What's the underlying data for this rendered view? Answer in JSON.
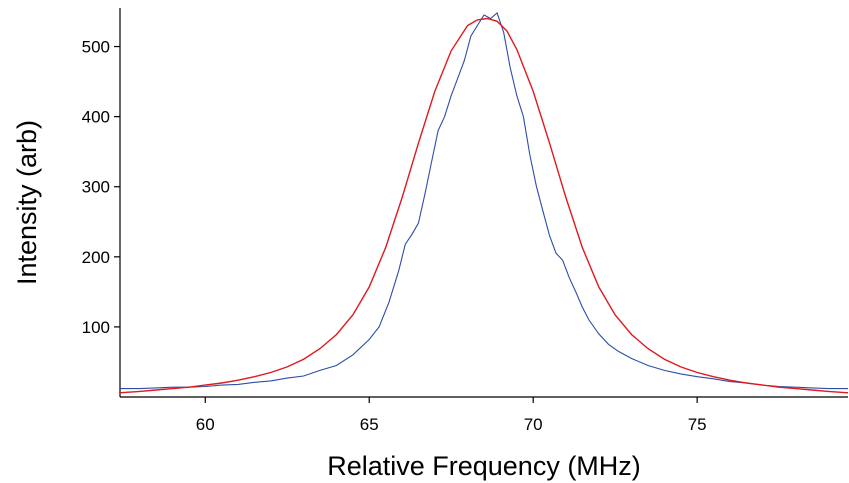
{
  "chart_data": {
    "type": "line",
    "title": "",
    "xlabel": "Relative Frequency (MHz)",
    "ylabel": "Intensity (arb)",
    "xlim": [
      57.4,
      79.6
    ],
    "ylim": [
      0,
      555
    ],
    "xticks": [
      60,
      65,
      70,
      75
    ],
    "yticks": [
      100,
      200,
      300,
      400,
      500
    ],
    "grid": false,
    "legend": "none",
    "colors": {
      "data": "#2b4ea8",
      "fit": "#e0191c"
    },
    "series": [
      {
        "kind": "measured",
        "x": [
          57.4,
          58.0,
          58.5,
          59.0,
          59.5,
          60.0,
          60.5,
          61.0,
          61.5,
          62.0,
          62.5,
          63.0,
          63.5,
          64.0,
          64.5,
          65.0,
          65.3,
          65.6,
          65.9,
          66.1,
          66.3,
          66.5,
          66.7,
          66.9,
          67.1,
          67.3,
          67.5,
          67.7,
          67.9,
          68.1,
          68.3,
          68.5,
          68.7,
          68.9,
          69.1,
          69.3,
          69.5,
          69.7,
          69.9,
          70.1,
          70.3,
          70.5,
          70.7,
          70.9,
          71.1,
          71.3,
          71.5,
          71.7,
          72.0,
          72.3,
          72.6,
          73.0,
          73.5,
          74.0,
          74.5,
          75.0,
          75.5,
          76.0,
          76.5,
          77.0,
          77.5,
          78.0,
          78.5,
          79.0,
          79.6
        ],
        "y": [
          12,
          12,
          13,
          14,
          14,
          15,
          17,
          18,
          21,
          23,
          27,
          30,
          38,
          45,
          60,
          82,
          100,
          135,
          180,
          218,
          232,
          248,
          290,
          335,
          380,
          400,
          430,
          455,
          480,
          515,
          530,
          545,
          540,
          548,
          520,
          470,
          430,
          400,
          345,
          300,
          265,
          230,
          205,
          195,
          170,
          150,
          128,
          110,
          90,
          75,
          65,
          55,
          45,
          38,
          33,
          29,
          26,
          22,
          20,
          17,
          15,
          14,
          13,
          12,
          12
        ]
      },
      {
        "kind": "lorentzian fit",
        "x": [
          57.4,
          58.0,
          58.5,
          59.0,
          59.5,
          60.0,
          60.5,
          61.0,
          61.5,
          62.0,
          62.5,
          63.0,
          63.5,
          64.0,
          64.5,
          65.0,
          65.5,
          66.0,
          66.5,
          67.0,
          67.5,
          68.0,
          68.3,
          68.6,
          68.9,
          69.2,
          69.5,
          70.0,
          70.5,
          71.0,
          71.5,
          72.0,
          72.5,
          73.0,
          73.5,
          74.0,
          74.5,
          75.0,
          75.5,
          76.0,
          76.5,
          77.0,
          77.5,
          78.0,
          78.5,
          79.0,
          79.6
        ],
        "y": [
          6,
          8,
          10,
          12,
          14,
          17,
          20,
          24,
          29,
          35,
          43,
          54,
          69,
          89,
          117,
          157,
          213,
          284,
          362,
          436,
          494,
          530,
          538,
          540,
          536,
          522,
          496,
          436,
          362,
          284,
          213,
          157,
          117,
          89,
          69,
          54,
          43,
          35,
          29,
          24,
          20,
          17,
          14,
          12,
          10,
          8,
          6
        ]
      }
    ]
  }
}
